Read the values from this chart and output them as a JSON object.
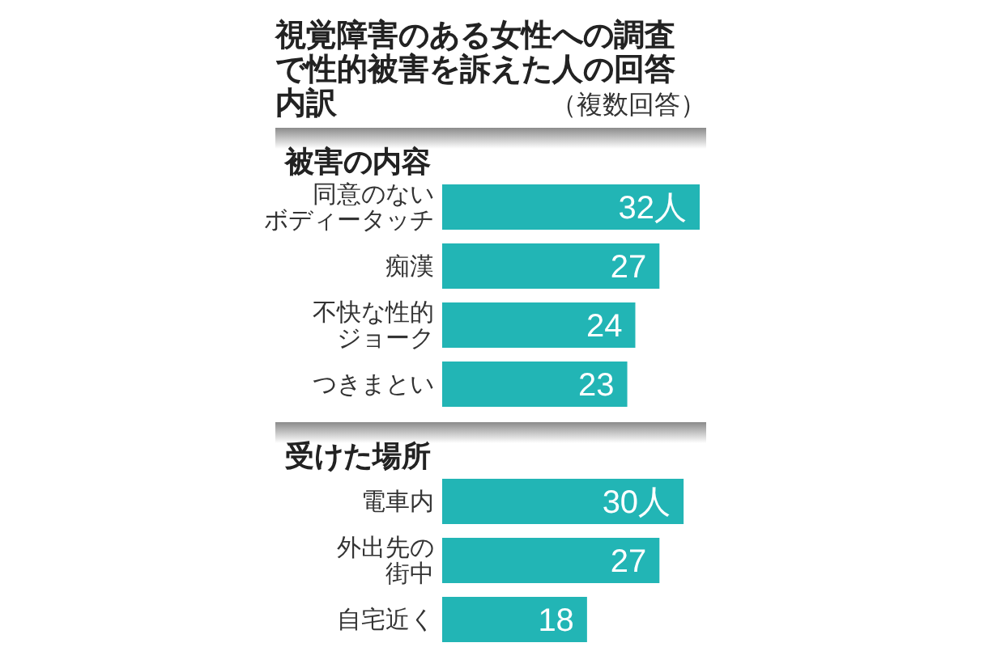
{
  "chart_data": [
    {
      "type": "other",
      "title": "視覚障害のある女性への調査で性的被害を訴えた人の回答内訳",
      "subtitle": "（複数回答）"
    },
    {
      "type": "bar",
      "orientation": "horizontal",
      "title": "被害の内容",
      "categories": [
        "同意のないボディータッチ",
        "痴漢",
        "不快な性的ジョーク",
        "つきまとい"
      ],
      "values": [
        32,
        27,
        24,
        23
      ],
      "value_labels": [
        "32人",
        "27",
        "24",
        "23"
      ],
      "color": "#22b5b5"
    },
    {
      "type": "bar",
      "orientation": "horizontal",
      "title": "受けた場所",
      "categories": [
        "電車内",
        "外出先の街中",
        "自宅近く"
      ],
      "values": [
        30,
        27,
        18
      ],
      "value_labels": [
        "30人",
        "27",
        "18"
      ],
      "color": "#22b5b5"
    }
  ]
}
